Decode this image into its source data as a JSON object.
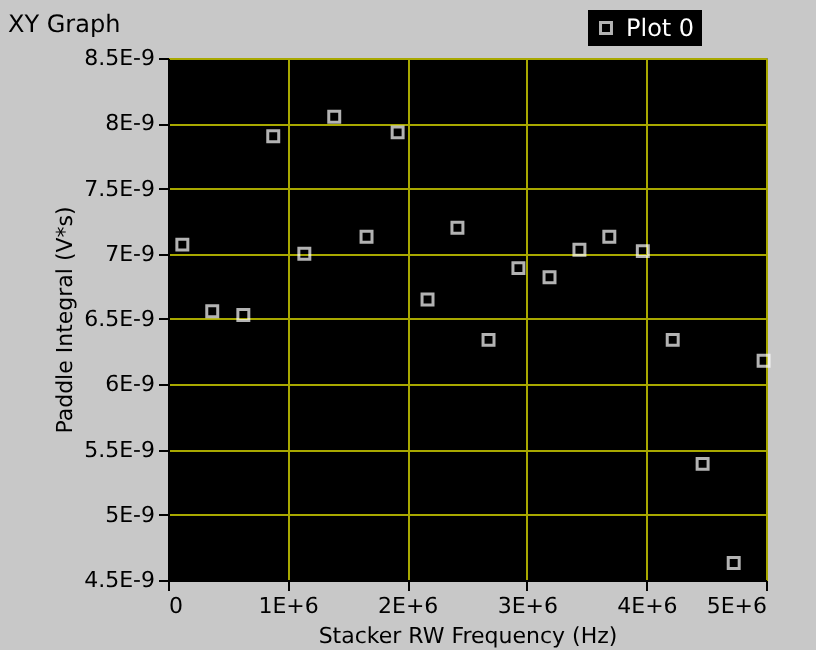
{
  "chart_data": {
    "type": "scatter",
    "title": "XY Graph",
    "xlabel": "Stacker RW Frequency (Hz)",
    "ylabel": "Paddle Integral (V*s)",
    "x": [
      120000,
      370000,
      630000,
      880000,
      1140000,
      1390000,
      1660000,
      1920000,
      2170000,
      2420000,
      2680000,
      2930000,
      3190000,
      3440000,
      3690000,
      3970000,
      4220000,
      4470000,
      4730000,
      4980000
    ],
    "series": [
      {
        "name": "Plot 0",
        "color": "#ffffff",
        "values": [
          7.07e-09,
          6.56e-09,
          6.53e-09,
          7.9e-09,
          7e-09,
          8.05e-09,
          7.13e-09,
          7.93e-09,
          6.65e-09,
          7.2e-09,
          6.34e-09,
          6.89e-09,
          6.82e-09,
          7.03e-09,
          7.13e-09,
          7.02e-09,
          6.34e-09,
          5.39e-09,
          4.63e-09,
          6.18e-09
        ]
      }
    ],
    "xlim": [
      0,
      5000000
    ],
    "ylim": [
      4.5e-09,
      8.5e-09
    ],
    "xticks": [
      0,
      {
        "value": 1000000,
        "label": "1E+6"
      },
      {
        "value": 2000000,
        "label": "2E+6"
      },
      {
        "value": 3000000,
        "label": "3E+6"
      },
      {
        "value": 4000000,
        "label": "4E+6"
      },
      {
        "value": 5000000,
        "label": "5E+6"
      }
    ],
    "yticks": [
      {
        "value": 4.5e-09,
        "label": "4.5E-9"
      },
      {
        "value": 5e-09,
        "label": "5E-9"
      },
      {
        "value": 5.5e-09,
        "label": "5.5E-9"
      },
      {
        "value": 6e-09,
        "label": "6E-9"
      },
      {
        "value": 6.5e-09,
        "label": "6.5E-9"
      },
      {
        "value": 7e-09,
        "label": "7E-9"
      },
      {
        "value": 7.5e-09,
        "label": "7.5E-9"
      },
      {
        "value": 8e-09,
        "label": "8E-9"
      },
      {
        "value": 8.5e-09,
        "label": "8.5E-9"
      }
    ],
    "grid": true,
    "legend": "top right",
    "marker": "square"
  }
}
